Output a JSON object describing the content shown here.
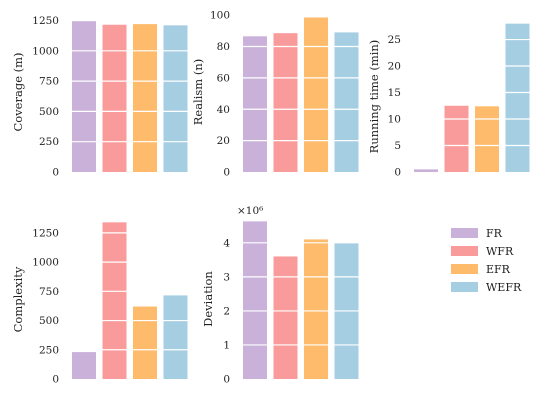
{
  "legend": {
    "placement": "right",
    "entries": [
      {
        "label": "FR",
        "color": "#c9b1d9"
      },
      {
        "label": "WFR",
        "color": "#fa9b9b"
      },
      {
        "label": "EFR",
        "color": "#fdbb6b"
      },
      {
        "label": "WEFR",
        "color": "#a6cee3"
      }
    ]
  },
  "chart_data": [
    {
      "type": "bar",
      "categories": [
        "FR",
        "WFR",
        "EFR",
        "WEFR"
      ],
      "values": [
        1245,
        1215,
        1220,
        1210
      ],
      "ylabel": "Coverage (m)",
      "ylim": [
        0,
        1320
      ],
      "yticks": [
        0,
        250,
        500,
        750,
        1000,
        1250
      ],
      "ytick_labels": [
        "0",
        "250",
        "500",
        "750",
        "1000",
        "1250"
      ]
    },
    {
      "type": "bar",
      "categories": [
        "FR",
        "WFR",
        "EFR",
        "WEFR"
      ],
      "values": [
        86.5,
        88.5,
        98.5,
        89
      ],
      "ylabel": "Realism (n)",
      "ylim": [
        0,
        102
      ],
      "yticks": [
        0,
        20,
        40,
        60,
        80,
        100
      ],
      "ytick_labels": [
        "0",
        "20",
        "40",
        "60",
        "80",
        "100"
      ]
    },
    {
      "type": "bar",
      "categories": [
        "FR",
        "WFR",
        "EFR",
        "WEFR"
      ],
      "values": [
        0.5,
        12.5,
        12.4,
        28
      ],
      "ylabel": "Running time (min)",
      "ylim": [
        0,
        28.5
      ],
      "yticks": [
        0,
        5,
        10,
        15,
        20,
        25
      ],
      "ytick_labels": [
        "0",
        "5",
        "10",
        "15",
        "20",
        "25"
      ]
    },
    {
      "type": "bar",
      "categories": [
        "FR",
        "WFR",
        "EFR",
        "WEFR"
      ],
      "values": [
        230,
        1340,
        620,
        715
      ],
      "ylabel": "Complexity",
      "ylim": [
        0,
        1360
      ],
      "yticks": [
        0,
        250,
        500,
        750,
        1000,
        1250
      ],
      "ytick_labels": [
        "0",
        "250",
        "500",
        "750",
        "1000",
        "1250"
      ]
    },
    {
      "type": "bar",
      "categories": [
        "FR",
        "WFR",
        "EFR",
        "WEFR"
      ],
      "values": [
        4630000,
        3600000,
        4100000,
        4000000
      ],
      "ylabel": "Deviation",
      "scale_label": "×10⁶",
      "ylim": [
        0,
        4700000
      ],
      "yticks": [
        0,
        1000000,
        2000000,
        3000000,
        4000000
      ],
      "ytick_labels": [
        "0",
        "1",
        "2",
        "3",
        "4"
      ]
    }
  ]
}
